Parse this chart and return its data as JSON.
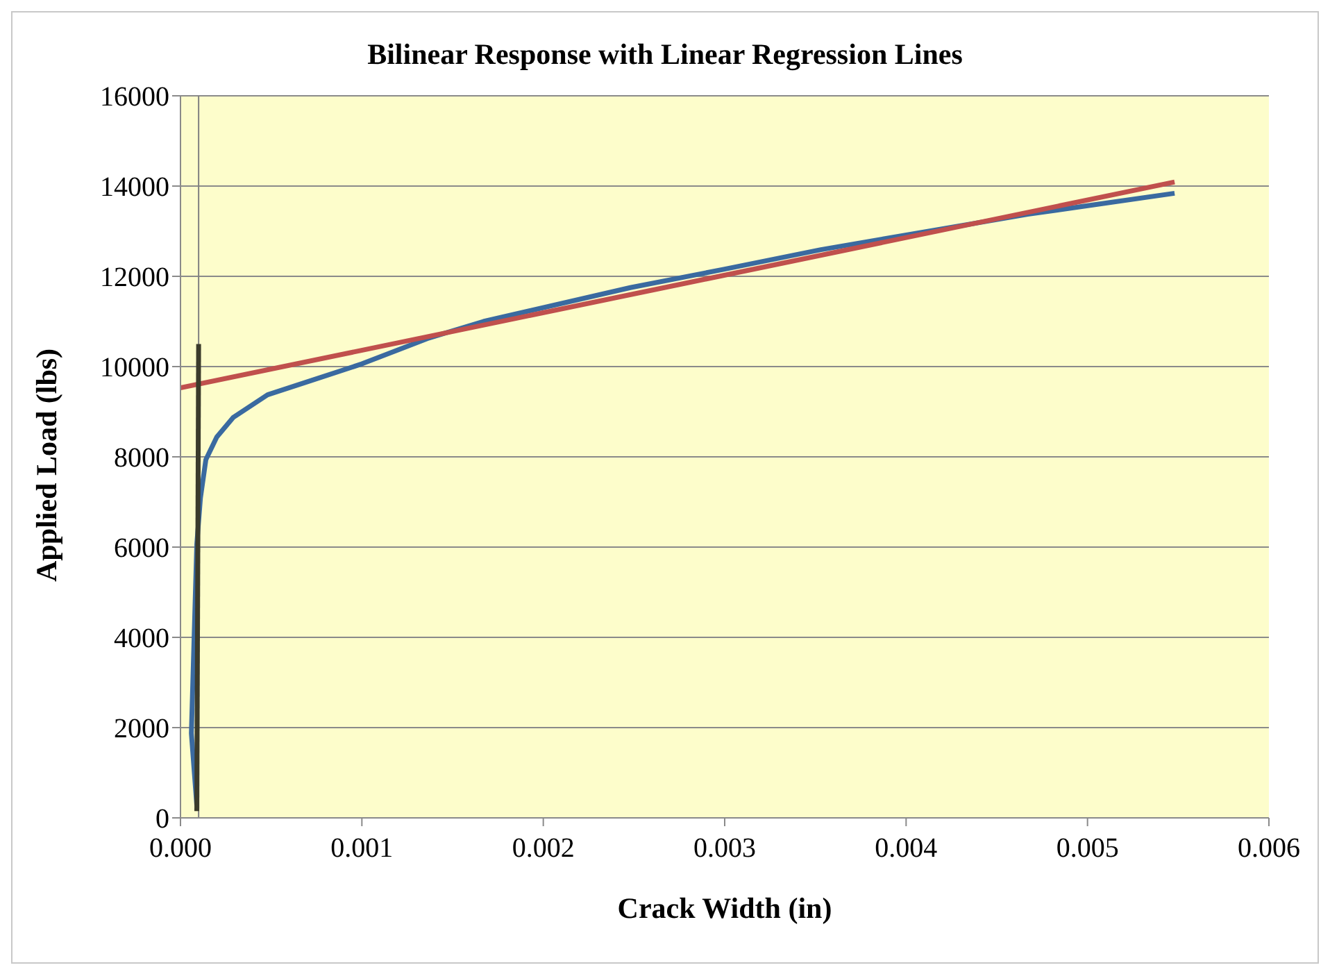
{
  "chart_data": {
    "type": "line",
    "title": "Bilinear Response with Linear Regression Lines",
    "xlabel": "Crack Width (in)",
    "ylabel": "Applied Load (lbs)",
    "xlim": [
      0,
      0.006
    ],
    "xticks": [
      {
        "value": 0,
        "label": "0.000"
      },
      0.001,
      0.002,
      0.003,
      0.004,
      0.005,
      0.006
    ],
    "ylim": [
      0,
      16000
    ],
    "yticks": [
      0,
      2000,
      4000,
      6000,
      8000,
      10000,
      12000,
      14000,
      16000
    ],
    "grid": "y",
    "legend": false,
    "marker": "none",
    "line_style": "solid",
    "ref_lines": [
      {
        "axis": "x",
        "value": 0.0001,
        "color": "#808080"
      }
    ],
    "series": [
      {
        "color": "#3a6aa0",
        "x": [
          9e-05,
          6e-05,
          9e-05,
          0.00011,
          0.00014,
          0.0002,
          0.00029,
          0.00048,
          0.00072,
          0.001,
          0.00136,
          0.00167,
          0.00248,
          0.003,
          0.00353,
          0.00467,
          0.00548
        ],
        "values": [
          280,
          1875,
          6060,
          7090,
          7940,
          8440,
          8870,
          9375,
          9690,
          10060,
          10620,
          11000,
          11750,
          12160,
          12590,
          13375,
          13840
        ]
      },
      {
        "color": "#c0504d",
        "x": [
          0,
          0.00548
        ],
        "values": [
          9530,
          14090
        ]
      },
      {
        "color": "#3b3b2b",
        "x": [
          9e-05,
          0.0001
        ],
        "values": [
          150,
          10500
        ]
      }
    ]
  }
}
